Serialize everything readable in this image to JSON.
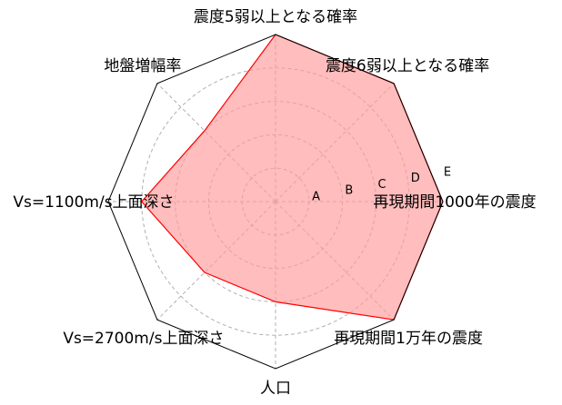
{
  "chart_data": {
    "type": "radar",
    "axes": [
      "震度5弱以上となる確率",
      "震度6弱以上となる確率",
      "再現期間1000年の震度",
      "再現期間1万年の震度",
      "人口",
      "Vs=2700m/s上面深さ",
      "Vs=1100m/s上面深さ",
      "地盤増幅率"
    ],
    "ring_labels": [
      "A",
      "B",
      "C",
      "D",
      "E"
    ],
    "levels": 5,
    "values": [
      5,
      5,
      5,
      5,
      3,
      3,
      4,
      3
    ],
    "grid": true,
    "colors": {
      "fill": "#ff9999",
      "line": "#ff0000",
      "outline": "#000000",
      "grid": "#b0b0b0"
    }
  }
}
